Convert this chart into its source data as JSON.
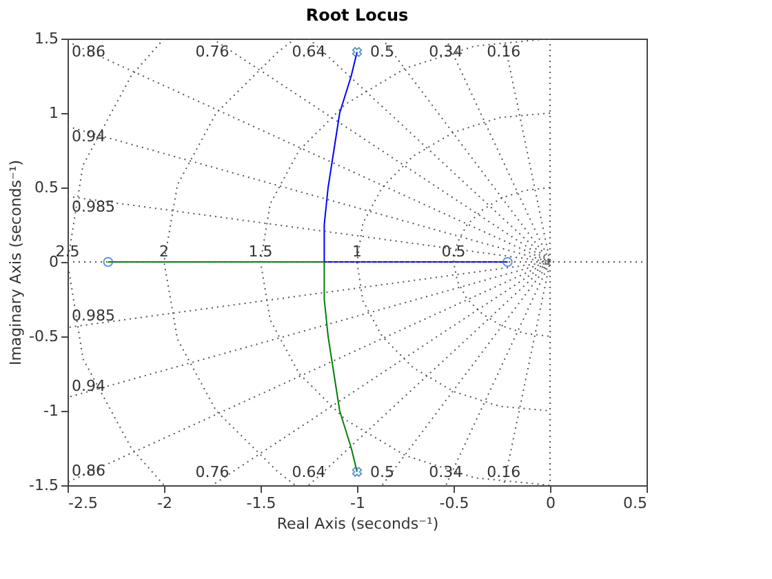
{
  "chart_data": {
    "type": "line",
    "title": "Root Locus",
    "xlabel": "Real Axis (seconds⁻¹)",
    "ylabel": "Imaginary Axis (seconds⁻¹)",
    "xlim": [
      -2.5,
      0.5
    ],
    "ylim": [
      -1.5,
      1.5
    ],
    "xticks": [
      -2.5,
      -2,
      -1.5,
      -1,
      -0.5,
      0,
      0.5
    ],
    "yticks": [
      -1.5,
      -1,
      -0.5,
      0,
      0.5,
      1,
      1.5
    ],
    "grid": false,
    "series": [
      {
        "color": "#0000ff",
        "line_style": "solid",
        "x": [
          -1.0,
          -1.03,
          -1.09,
          -1.12,
          -1.15,
          -1.17,
          -1.17,
          -0.22
        ],
        "values": [
          1.41,
          1.25,
          1.0,
          0.75,
          0.5,
          0.25,
          0,
          0
        ]
      },
      {
        "color": "#008000",
        "line_style": "solid",
        "x": [
          -1.0,
          -1.03,
          -1.09,
          -1.12,
          -1.15,
          -1.17,
          -1.17,
          -2.29
        ],
        "values": [
          -1.41,
          -1.25,
          -1.0,
          -0.75,
          -0.5,
          -0.25,
          0,
          0
        ]
      },
      {
        "type": "scatter",
        "marker": "cross",
        "color": "#1f6fbf",
        "x": [
          -1.0,
          -1.0
        ],
        "values": [
          1.41,
          -1.41
        ]
      },
      {
        "type": "scatter",
        "marker": "circle",
        "color": "#1f6fbf",
        "x": [
          -0.22,
          -2.29
        ],
        "values": [
          0,
          0
        ]
      },
      {
        "color": "#555555",
        "line_style": "dotted",
        "x": [
          0,
          0
        ],
        "values": [
          1.5,
          -1.5
        ]
      },
      {
        "name": "0.16",
        "color": "#555555",
        "line_style": "dotted",
        "x": [
          -0.24,
          0,
          -0.24
        ],
        "values": [
          1.5,
          0,
          -1.5
        ]
      },
      {
        "name": "0.34",
        "color": "#555555",
        "line_style": "dotted",
        "x": [
          -0.54,
          0,
          -0.54
        ],
        "values": [
          1.5,
          0,
          -1.5
        ]
      },
      {
        "name": "0.5",
        "color": "#555555",
        "line_style": "dotted",
        "x": [
          -0.87,
          0,
          -0.87
        ],
        "values": [
          1.5,
          0,
          -1.5
        ]
      },
      {
        "name": "0.64",
        "color": "#555555",
        "line_style": "dotted",
        "x": [
          -1.25,
          0,
          -1.25
        ],
        "values": [
          1.5,
          0,
          -1.5
        ]
      },
      {
        "name": "0.76",
        "color": "#555555",
        "line_style": "dotted",
        "x": [
          -1.75,
          0,
          -1.75
        ],
        "values": [
          1.5,
          0,
          -1.5
        ]
      },
      {
        "name": "0.86",
        "color": "#555555",
        "line_style": "dotted",
        "x": [
          -2.5,
          0,
          -2.5
        ],
        "values": [
          1.48,
          0,
          -1.48
        ]
      },
      {
        "name": "0.94",
        "color": "#555555",
        "line_style": "dotted",
        "x": [
          -2.5,
          0,
          -2.5
        ],
        "values": [
          0.91,
          0,
          -0.91
        ]
      },
      {
        "name": "0.985",
        "color": "#555555",
        "line_style": "dotted",
        "x": [
          -2.5,
          0,
          -2.5
        ],
        "values": [
          0.44,
          0,
          -0.44
        ]
      },
      {
        "color": "#555555",
        "line_style": "dotted",
        "x": [
          -2.5,
          0.5
        ],
        "values": [
          0,
          0
        ]
      },
      {
        "name": "0.5",
        "color": "#555555",
        "line_style": "dotted",
        "x": [
          0,
          -0.13,
          -0.25,
          -0.35,
          -0.43,
          -0.48,
          -0.5,
          -0.48,
          -0.43,
          -0.35,
          -0.25,
          -0.13,
          0
        ],
        "values": [
          0.5,
          0.48,
          0.43,
          0.35,
          0.25,
          0.13,
          0,
          -0.13,
          -0.25,
          -0.35,
          -0.43,
          -0.48,
          -0.5
        ]
      },
      {
        "name": "1",
        "color": "#555555",
        "line_style": "dotted",
        "x": [
          0,
          -0.26,
          -0.5,
          -0.71,
          -0.87,
          -0.97,
          -1,
          -0.97,
          -0.87,
          -0.71,
          -0.5,
          -0.26,
          0
        ],
        "values": [
          1,
          0.97,
          0.87,
          0.71,
          0.5,
          0.26,
          0,
          -0.26,
          -0.5,
          -0.71,
          -0.87,
          -0.97,
          -1
        ]
      },
      {
        "name": "1.5",
        "color": "#555555",
        "line_style": "dotted",
        "x": [
          0,
          -0.39,
          -0.75,
          -1.06,
          -1.3,
          -1.45,
          -1.5,
          -1.45,
          -1.3,
          -1.06,
          -0.75,
          -0.39,
          0
        ],
        "values": [
          1.5,
          1.45,
          1.3,
          1.06,
          0.75,
          0.39,
          0,
          -0.39,
          -0.75,
          -1.06,
          -1.3,
          -1.45,
          -1.5
        ]
      },
      {
        "name": "2",
        "color": "#555555",
        "line_style": "dotted",
        "x": [
          -1.32,
          -1.41,
          -1.73,
          -1.93,
          -2,
          -1.93,
          -1.73,
          -1.41,
          -1.32
        ],
        "values": [
          1.5,
          1.41,
          1,
          0.52,
          0,
          -0.52,
          -1,
          -1.41,
          -1.5
        ]
      },
      {
        "name": "2.5",
        "color": "#555555",
        "line_style": "dotted",
        "x": [
          -2.0,
          -2.17,
          -2.42,
          -2.5,
          -2.42,
          -2.17,
          -2.0
        ],
        "values": [
          1.5,
          1.25,
          0.65,
          0,
          -0.65,
          -1.25,
          -1.5
        ]
      }
    ]
  }
}
